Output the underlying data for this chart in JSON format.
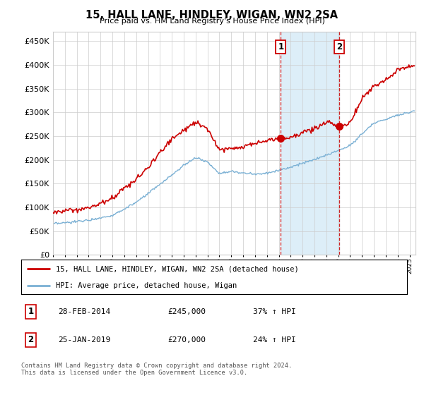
{
  "title": "15, HALL LANE, HINDLEY, WIGAN, WN2 2SA",
  "subtitle": "Price paid vs. HM Land Registry's House Price Index (HPI)",
  "ytick_values": [
    0,
    50000,
    100000,
    150000,
    200000,
    250000,
    300000,
    350000,
    400000,
    450000
  ],
  "ylim": [
    0,
    470000
  ],
  "xlim_start": 1995.0,
  "xlim_end": 2025.5,
  "hpi_color": "#7ab0d4",
  "price_color": "#cc0000",
  "shade_color": "#ddeef8",
  "marker1_x": 2014.17,
  "marker1_y": 245000,
  "marker1_label": "1",
  "marker2_x": 2019.08,
  "marker2_y": 270000,
  "marker2_label": "2",
  "marker_dashed_color": "#cc0000",
  "sale1_date": "28-FEB-2014",
  "sale1_price": "£245,000",
  "sale1_hpi": "37% ↑ HPI",
  "sale2_date": "25-JAN-2019",
  "sale2_price": "£270,000",
  "sale2_hpi": "24% ↑ HPI",
  "legend_line1": "15, HALL LANE, HINDLEY, WIGAN, WN2 2SA (detached house)",
  "legend_line2": "HPI: Average price, detached house, Wigan",
  "footnote": "Contains HM Land Registry data © Crown copyright and database right 2024.\nThis data is licensed under the Open Government Licence v3.0.",
  "bg_color": "#ffffff",
  "grid_color": "#cccccc",
  "shade_start": 2014.17,
  "shade_end": 2019.08
}
